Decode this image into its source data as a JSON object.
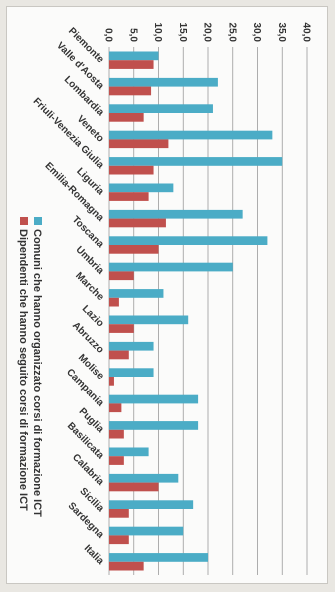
{
  "chart_data": {
    "type": "bar",
    "orientation": "vertical",
    "rotated": "90deg-clockwise",
    "categories": [
      "Piemonte",
      "Valle d'Aosta",
      "Lombardia",
      "Veneto",
      "Friuli-Venezia Giulia",
      "Liguria",
      "Emilia-Romagna",
      "Toscana",
      "Umbria",
      "Marche",
      "Lazio",
      "Abruzzo",
      "Molise",
      "Campania",
      "Puglia",
      "Basilicata",
      "Calabria",
      "Sicilia",
      "Sardegna",
      "Italia"
    ],
    "series": [
      {
        "name": "Comuni che hanno organizzato corsi di formazione ICT",
        "color": "#4bacc6",
        "values": [
          10.0,
          22.0,
          21.0,
          33.0,
          35.0,
          13.0,
          27.0,
          32.0,
          25.0,
          11.0,
          16.0,
          9.0,
          9.0,
          18.0,
          18.0,
          8.0,
          14.0,
          17.0,
          15.0,
          20.0
        ]
      },
      {
        "name": "Dipendenti che hanno seguito corsi di formazione ICT",
        "color": "#c0504d",
        "values": [
          9.0,
          8.5,
          7.0,
          12.0,
          9.0,
          8.0,
          11.5,
          10.0,
          5.0,
          2.0,
          5.0,
          4.0,
          1.0,
          2.5,
          3.0,
          3.0,
          10.0,
          4.0,
          4.0,
          7.0
        ]
      }
    ],
    "ylim": [
      0,
      40
    ],
    "yticks": [
      "0,0",
      "5,0",
      "10,0",
      "15,0",
      "20,0",
      "25,0",
      "30,0",
      "35,0",
      "40,0"
    ],
    "grid": true,
    "legend_position": "right"
  }
}
